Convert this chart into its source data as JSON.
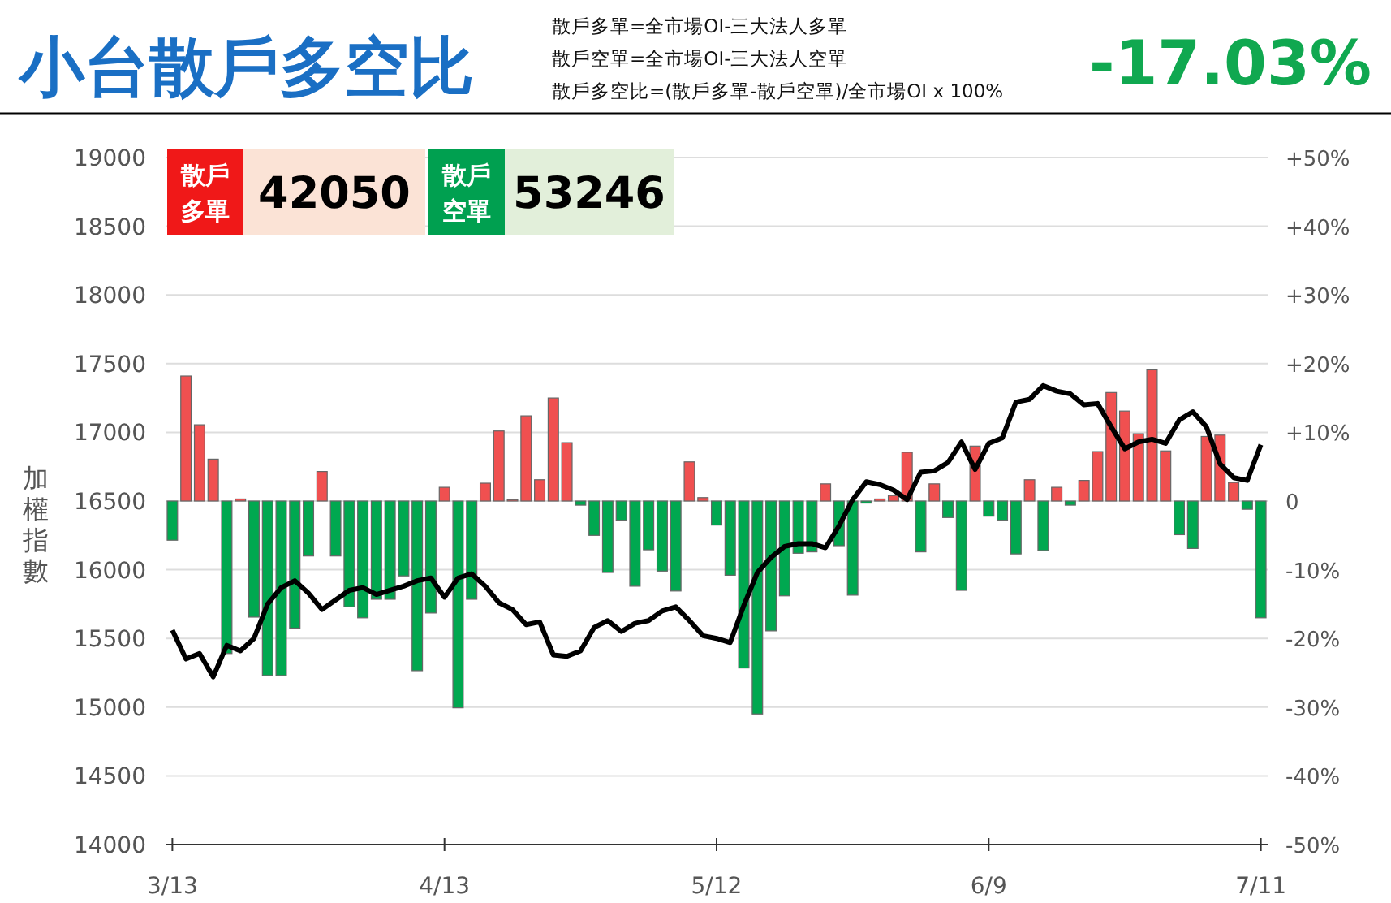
{
  "chart_data": {
    "type": "bar",
    "title": "小台散戶多空比",
    "ylabel": "加權指數",
    "annotations": [
      "散戶多單=全市場OI-三大法人多單",
      "散戶空單=全市場OI-三大法人空單",
      "散戶多空比=(散戶多單-散戶空單)/全市場OI x 100%",
      "-17.03%",
      "散戶多單",
      "42050",
      "散戶空單",
      "53246"
    ],
    "categories": [
      "3/13",
      null,
      null,
      null,
      null,
      null,
      null,
      null,
      null,
      null,
      null,
      null,
      null,
      null,
      null,
      null,
      null,
      null,
      null,
      null,
      "4/13",
      null,
      null,
      null,
      null,
      null,
      null,
      null,
      null,
      null,
      null,
      null,
      null,
      null,
      null,
      null,
      null,
      null,
      null,
      null,
      "5/12",
      null,
      null,
      null,
      null,
      null,
      null,
      null,
      null,
      null,
      null,
      null,
      null,
      null,
      null,
      null,
      null,
      null,
      null,
      null,
      "6/9",
      null,
      null,
      null,
      null,
      null,
      null,
      null,
      null,
      null,
      null,
      null,
      null,
      null,
      null,
      null,
      null,
      null,
      null,
      null,
      "7/11"
    ],
    "series": [
      {
        "axis": "y2",
        "values": [
          -5.7,
          18.2,
          11.1,
          6.1,
          -22.2,
          0.3,
          -16.9,
          -25.4,
          -25.4,
          -18.5,
          -8.0,
          4.3,
          -8.0,
          -15.4,
          -17.0,
          -14.3,
          -14.3,
          -10.9,
          -24.7,
          -16.3,
          2.0,
          -30.1,
          -14.3,
          2.6,
          10.2,
          0.2,
          12.4,
          3.1,
          15.0,
          8.5,
          -0.6,
          -5.0,
          -10.4,
          -2.8,
          -12.4,
          -7.1,
          -10.2,
          -13.1,
          5.7,
          0.5,
          -3.5,
          -10.8,
          -24.3,
          -31.0,
          -18.9,
          -13.8,
          -7.6,
          -7.4,
          2.5,
          -6.5,
          -13.7,
          -0.3,
          0.3,
          0.8,
          7.1,
          -7.4,
          2.5,
          -2.4,
          -13.0,
          8.0,
          -2.2,
          -2.8,
          -7.7,
          3.1,
          -7.2,
          2.0,
          -0.6,
          3.0,
          7.2,
          15.8,
          13.1,
          9.8,
          19.1,
          7.3,
          -4.9,
          -6.9,
          9.4,
          9.6,
          2.7,
          -1.2,
          -17.0
        ],
        "colors": [
          "#00a850",
          "#f05050",
          "#f05050",
          "#f05050",
          "#00a850",
          "#f05050",
          "#00a850",
          "#00a850",
          "#00a850",
          "#00a850",
          "#00a850",
          "#f05050",
          "#00a850",
          "#00a850",
          "#00a850",
          "#00a850",
          "#00a850",
          "#00a850",
          "#00a850",
          "#00a850",
          "#f05050",
          "#00a850",
          "#00a850",
          "#f05050",
          "#f05050",
          "#f05050",
          "#f05050",
          "#f05050",
          "#f05050",
          "#f05050",
          "#00a850",
          "#00a850",
          "#00a850",
          "#00a850",
          "#00a850",
          "#00a850",
          "#00a850",
          "#00a850",
          "#f05050",
          "#f05050",
          "#00a850",
          "#00a850",
          "#00a850",
          "#00a850",
          "#00a850",
          "#00a850",
          "#00a850",
          "#00a850",
          "#f05050",
          "#00a850",
          "#00a850",
          "#00a850",
          "#f05050",
          "#f05050",
          "#f05050",
          "#00a850",
          "#f05050",
          "#00a850",
          "#00a850",
          "#f05050",
          "#00a850",
          "#00a850",
          "#00a850",
          "#f05050",
          "#00a850",
          "#f05050",
          "#00a850",
          "#f05050",
          "#f05050",
          "#f05050",
          "#f05050",
          "#f05050",
          "#f05050",
          "#f05050",
          "#00a850",
          "#00a850",
          "#f05050",
          "#f05050",
          "#f05050",
          "#00a850",
          "#00a850"
        ]
      },
      {
        "type": "line",
        "color": "#000000",
        "values": [
          15560,
          15350,
          15390,
          15220,
          15450,
          15410,
          15500,
          15750,
          15870,
          15920,
          15830,
          15710,
          15780,
          15850,
          15870,
          15820,
          15850,
          15880,
          15920,
          15940,
          15800,
          15940,
          15970,
          15880,
          15760,
          15710,
          15600,
          15620,
          15380,
          15370,
          15410,
          15580,
          15630,
          15550,
          15610,
          15630,
          15700,
          15730,
          15630,
          15520,
          15500,
          15470,
          15740,
          15980,
          16090,
          16170,
          16190,
          16190,
          16160,
          16320,
          16510,
          16640,
          16620,
          16580,
          16510,
          16710,
          16720,
          16780,
          16930,
          16730,
          16920,
          16960,
          17220,
          17240,
          17340,
          17300,
          17280,
          17200,
          17210,
          17040,
          16880,
          16930,
          16950,
          16920,
          17090,
          17150,
          17040,
          16770,
          16670,
          16650,
          16910
        ]
      }
    ],
    "ylim": [
      14000,
      19000
    ],
    "yticks": [
      14000,
      14500,
      15000,
      15500,
      16000,
      16500,
      17000,
      17500,
      18000,
      18500,
      19000
    ],
    "y2lim": [
      -50,
      50
    ],
    "y2ticks": [
      {
        "value": -50,
        "label": "-50%"
      },
      {
        "value": -40,
        "label": "-40%"
      },
      {
        "value": -30,
        "label": "-30%"
      },
      {
        "value": -20,
        "label": "-20%"
      },
      {
        "value": -10,
        "label": "-10%"
      },
      0,
      {
        "value": 10,
        "label": "+10%"
      },
      {
        "value": 20,
        "label": "+20%"
      },
      {
        "value": 30,
        "label": "+30%"
      },
      {
        "value": 40,
        "label": "+40%"
      },
      {
        "value": 50,
        "label": "+50%"
      }
    ],
    "grid": "y",
    "marker": "none",
    "line_style": "solid"
  }
}
